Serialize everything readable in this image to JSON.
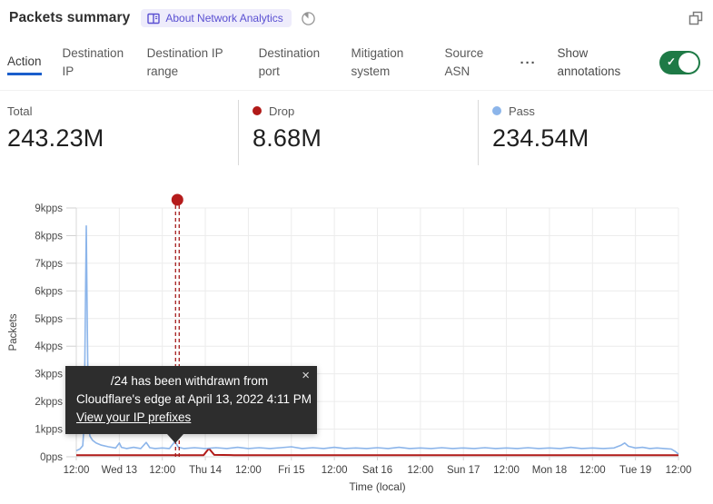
{
  "header": {
    "title": "Packets summary",
    "badge_label": "About Network Analytics",
    "icons": {
      "badge_icon": "book-icon",
      "time_icon": "pie-clock-icon",
      "popout_icon": "popout-icon"
    }
  },
  "tabs": {
    "items": [
      {
        "label": "Action",
        "active": true
      },
      {
        "label": "Destination IP",
        "active": false
      },
      {
        "label": "Destination IP range",
        "active": false
      },
      {
        "label": "Destination port",
        "active": false
      },
      {
        "label": "Mitigation system",
        "active": false
      },
      {
        "label": "Source ASN",
        "active": false
      }
    ],
    "more_label": "···",
    "show_annotations_label": "Show annotations",
    "toggle_on": true,
    "toggle_color": "#1e7a46",
    "active_underline_color": "#1a5ecb"
  },
  "stats": [
    {
      "label": "Total",
      "value": "243.23M",
      "dot_color": null
    },
    {
      "label": "Drop",
      "value": "8.68M",
      "dot_color": "#b11a18"
    },
    {
      "label": "Pass",
      "value": "234.54M",
      "dot_color": "#8cb5ea"
    }
  ],
  "tooltip": {
    "line1": "/24 has been withdrawn from",
    "line2": "Cloudflare's edge at April 13, 2022 4:11 PM",
    "link": "View your IP prefixes",
    "close": "×"
  },
  "chart_data": {
    "type": "line",
    "title": "Packets summary",
    "xlabel": "Time (local)",
    "ylabel": "Packets",
    "x_ticks": [
      "12:00",
      "Wed 13",
      "12:00",
      "Thu 14",
      "12:00",
      "Fri 15",
      "12:00",
      "Sat 16",
      "12:00",
      "Sun 17",
      "12:00",
      "Mon 18",
      "12:00",
      "Tue 19",
      "12:00"
    ],
    "y_ticks": [
      "0pps",
      "1kpps",
      "2kpps",
      "3kpps",
      "4kpps",
      "5kpps",
      "6kpps",
      "7kpps",
      "8kpps",
      "9kpps"
    ],
    "ylim": [
      0,
      9
    ],
    "y_unit": "kpps",
    "x_range_hours": 168,
    "grid": true,
    "legend_position": "stats-row-above",
    "series": [
      {
        "name": "Drop",
        "color": "#b11a18",
        "width": 2,
        "points": [
          [
            0,
            0.06
          ],
          [
            6,
            0.06
          ],
          [
            12,
            0.06
          ],
          [
            18,
            0.06
          ],
          [
            24,
            0.06
          ],
          [
            30,
            0.06
          ],
          [
            35.5,
            0.06
          ],
          [
            37,
            0.3
          ],
          [
            38.5,
            0.07
          ],
          [
            44,
            0.06
          ],
          [
            52,
            0.06
          ],
          [
            60,
            0.06
          ],
          [
            70,
            0.06
          ],
          [
            80,
            0.06
          ],
          [
            90,
            0.06
          ],
          [
            100,
            0.06
          ],
          [
            110,
            0.06
          ],
          [
            120,
            0.06
          ],
          [
            130,
            0.06
          ],
          [
            140,
            0.06
          ],
          [
            150,
            0.06
          ],
          [
            160,
            0.06
          ],
          [
            168,
            0.06
          ]
        ]
      },
      {
        "name": "Pass",
        "color": "#8cb5ea",
        "width": 1.6,
        "points": [
          [
            0,
            0.22
          ],
          [
            1,
            0.28
          ],
          [
            1.8,
            0.4
          ],
          [
            2.2,
            1.2
          ],
          [
            2.5,
            5.0
          ],
          [
            2.8,
            8.35
          ],
          [
            3.1,
            4.5
          ],
          [
            3.4,
            1.2
          ],
          [
            3.8,
            0.75
          ],
          [
            4.5,
            0.6
          ],
          [
            5.5,
            0.5
          ],
          [
            7,
            0.42
          ],
          [
            9,
            0.36
          ],
          [
            11,
            0.32
          ],
          [
            12,
            0.5
          ],
          [
            12.6,
            0.34
          ],
          [
            14,
            0.3
          ],
          [
            16,
            0.34
          ],
          [
            18,
            0.3
          ],
          [
            19.5,
            0.52
          ],
          [
            20.5,
            0.33
          ],
          [
            22,
            0.3
          ],
          [
            24,
            0.32
          ],
          [
            26,
            0.3
          ],
          [
            27.5,
            0.55
          ],
          [
            28.5,
            0.34
          ],
          [
            30,
            0.3
          ],
          [
            33,
            0.33
          ],
          [
            36,
            0.3
          ],
          [
            39,
            0.33
          ],
          [
            42,
            0.3
          ],
          [
            45,
            0.34
          ],
          [
            48,
            0.3
          ],
          [
            51,
            0.33
          ],
          [
            54,
            0.3
          ],
          [
            57,
            0.33
          ],
          [
            60,
            0.36
          ],
          [
            63,
            0.3
          ],
          [
            66,
            0.33
          ],
          [
            69,
            0.3
          ],
          [
            72,
            0.34
          ],
          [
            75,
            0.3
          ],
          [
            78,
            0.32
          ],
          [
            81,
            0.3
          ],
          [
            84,
            0.33
          ],
          [
            87,
            0.3
          ],
          [
            90,
            0.34
          ],
          [
            93,
            0.3
          ],
          [
            96,
            0.32
          ],
          [
            99,
            0.3
          ],
          [
            102,
            0.33
          ],
          [
            105,
            0.3
          ],
          [
            108,
            0.32
          ],
          [
            111,
            0.3
          ],
          [
            114,
            0.33
          ],
          [
            117,
            0.3
          ],
          [
            120,
            0.32
          ],
          [
            123,
            0.3
          ],
          [
            126,
            0.33
          ],
          [
            129,
            0.3
          ],
          [
            132,
            0.32
          ],
          [
            135,
            0.3
          ],
          [
            138,
            0.34
          ],
          [
            141,
            0.3
          ],
          [
            144,
            0.32
          ],
          [
            147,
            0.3
          ],
          [
            150,
            0.32
          ],
          [
            152,
            0.42
          ],
          [
            153,
            0.5
          ],
          [
            154,
            0.38
          ],
          [
            156,
            0.32
          ],
          [
            158,
            0.34
          ],
          [
            160,
            0.3
          ],
          [
            162,
            0.32
          ],
          [
            164,
            0.3
          ],
          [
            166,
            0.28
          ],
          [
            167,
            0.2
          ],
          [
            168,
            0.1
          ]
        ]
      }
    ],
    "annotation": {
      "t_hours": 28.2,
      "dot_color": "#b51c1c",
      "line_color": "#a51d1d"
    }
  }
}
